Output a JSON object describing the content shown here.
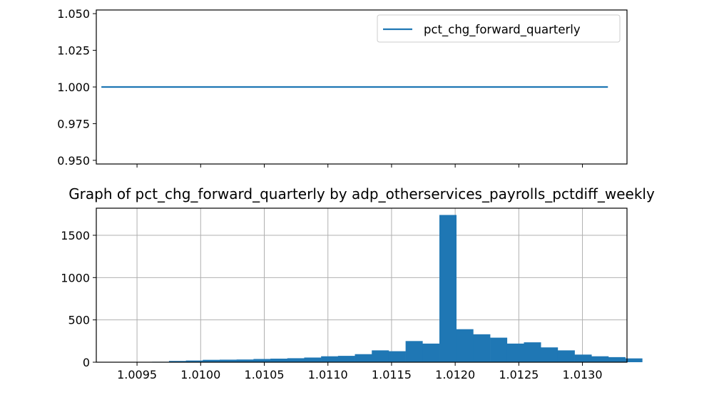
{
  "chart_data": [
    {
      "type": "line",
      "title": "",
      "xlabel": "",
      "ylabel": "",
      "ylim": [
        0.9475,
        1.0525
      ],
      "yticks": [
        "0.950",
        "0.975",
        "1.000",
        "1.025",
        "1.050"
      ],
      "grid": false,
      "legend": {
        "placement": "top-right",
        "entries": [
          "pct_chg_forward_quarterly"
        ]
      },
      "series": [
        {
          "name": "pct_chg_forward_quarterly",
          "x": [
            1.00922,
            1.0132
          ],
          "y": [
            1.0,
            1.0
          ],
          "color": "#1f77b4"
        }
      ]
    },
    {
      "type": "bar",
      "title": "Graph of pct_chg_forward_quarterly by adp_otherservices_payrolls_pctdiff_weekly",
      "xlabel": "",
      "ylabel": "",
      "xlim": [
        1.00918,
        1.01335
      ],
      "ylim": [
        0,
        1820
      ],
      "xticks": [
        "1.0095",
        "1.0100",
        "1.0105",
        "1.0110",
        "1.0115",
        "1.0120",
        "1.0125",
        "1.0130"
      ],
      "yticks": [
        "0",
        "500",
        "1000",
        "1500"
      ],
      "grid": true,
      "color": "#1f77b4",
      "bin_start": 1.00922,
      "bin_width": 0.0001328,
      "values": [
        2,
        3,
        3,
        5,
        15,
        20,
        28,
        30,
        32,
        38,
        42,
        47,
        55,
        70,
        75,
        95,
        140,
        130,
        250,
        220,
        1740,
        390,
        330,
        290,
        220,
        235,
        175,
        140,
        90,
        70,
        60,
        45
      ]
    }
  ]
}
